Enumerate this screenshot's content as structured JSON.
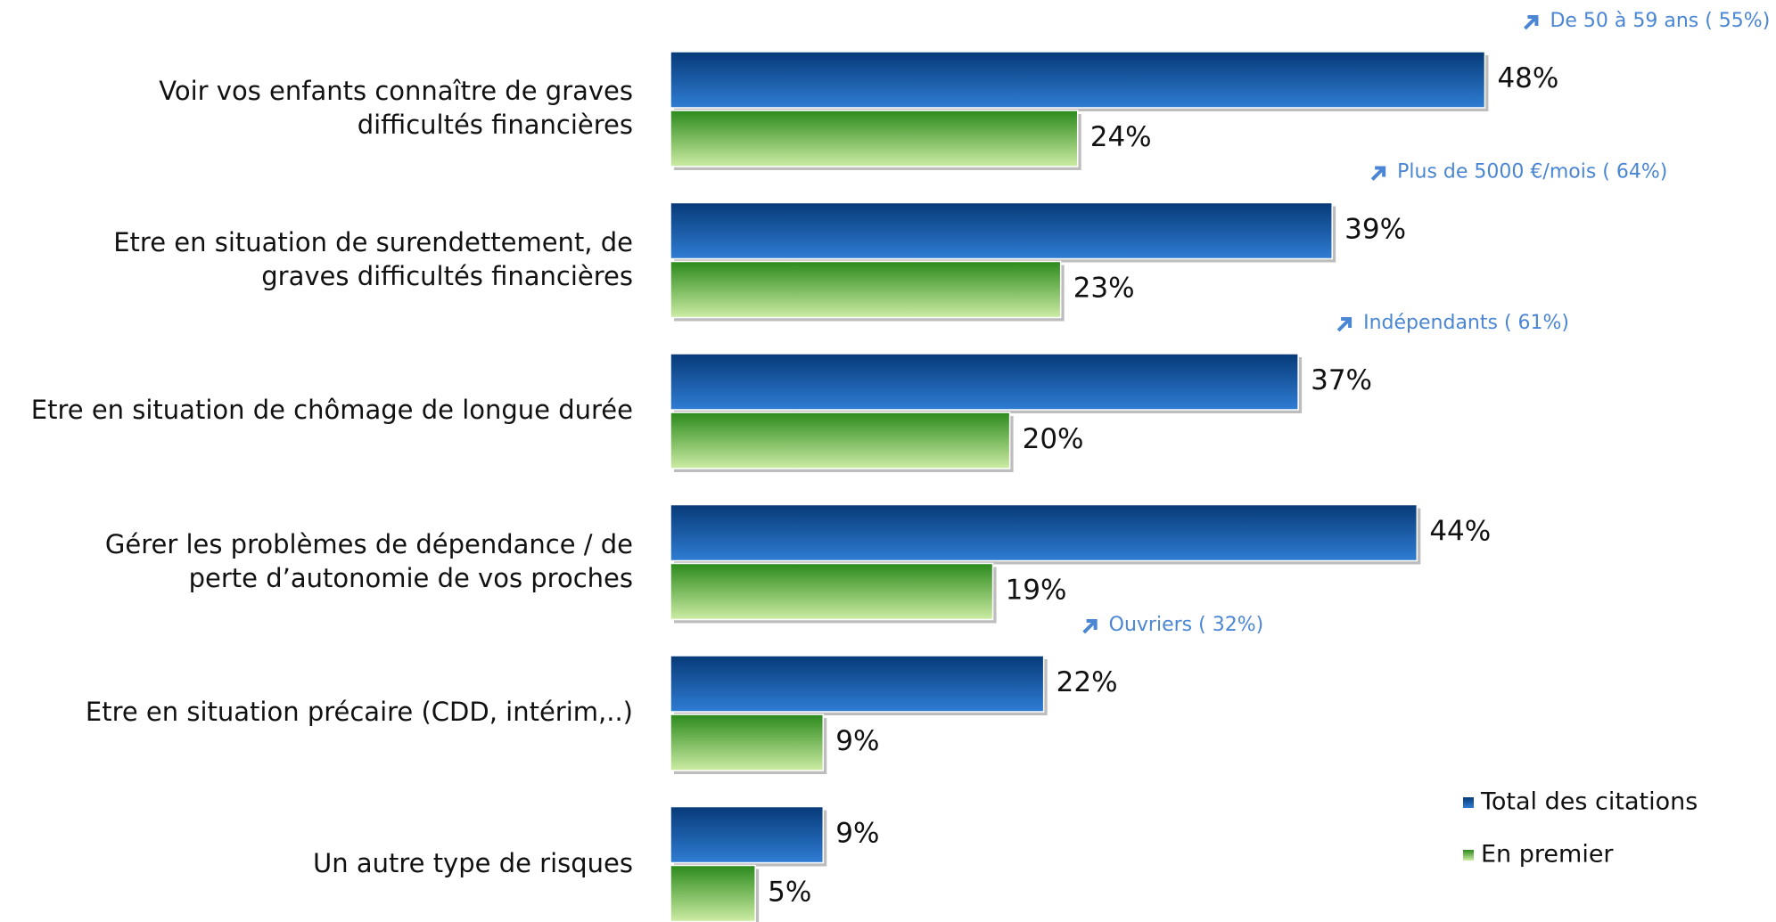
{
  "chart_data": {
    "type": "hbar",
    "categories": [
      "Voir vos enfants connaître de graves\ndifficultés financières",
      "Etre en situation de surendettement, de\ngraves difficultés financières",
      "Etre en situation de chômage de longue durée",
      "Gérer les problèmes de dépendance / de\nperte d’autonomie de vos proches",
      "Etre en situation précaire (CDD, intérim,..)",
      "Un autre type de risques"
    ],
    "series": [
      {
        "name": "Total des citations",
        "color": "#1f5fae",
        "values": [
          48,
          39,
          37,
          44,
          22,
          9
        ],
        "value_labels": [
          "48%",
          "39%",
          "37%",
          "44%",
          "22%",
          "9%"
        ]
      },
      {
        "name": "En premier",
        "color": "#7cc846",
        "values": [
          24,
          23,
          20,
          19,
          9,
          5
        ],
        "value_labels": [
          "24%",
          "23%",
          "20%",
          "19%",
          "9%",
          "5%"
        ]
      }
    ],
    "annotations": [
      "De 50 à 59 ans ( 55%)",
      "Plus de 5000 €/mois ( 64%)",
      "Indépendants ( 61%)",
      null,
      "Ouvriers ( 32%)",
      null
    ]
  }
}
